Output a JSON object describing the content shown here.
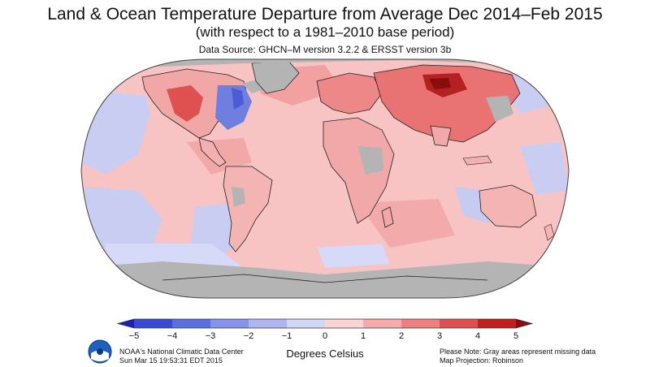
{
  "header": {
    "title": "Land & Ocean Temperature Departure from Average Dec 2014–Feb 2015",
    "subtitle": "(with respect to a 1981–2010 base period)",
    "source": "Data Source: GHCN–M version 3.2.2 & ERSST version 3b"
  },
  "colorbar": {
    "ticks": [
      "−5",
      "−4",
      "−3",
      "−2",
      "−1",
      "0",
      "1",
      "2",
      "3",
      "4",
      "5"
    ],
    "label": "Degrees Celsius",
    "colors": [
      "#1c1fb8",
      "#3b48d4",
      "#5c6fe0",
      "#8593ea",
      "#adb6f0",
      "#d2d6f7",
      "#fbd3d3",
      "#f6aaaa",
      "#ee7f7f",
      "#df4f4f",
      "#c21f1f",
      "#8a0d0d"
    ]
  },
  "footer": {
    "org": "NOAA's National Climatic Data Center",
    "timestamp": "Sun Mar 15 19:53:31 EDT 2015",
    "note": "Please Note: Gray areas represent missing data",
    "projection": "Map Projection: Robinson"
  },
  "map": {
    "ocean_color": "#f7c3c3",
    "missing_color": "#b4b4b4",
    "outline_color": "#222222"
  }
}
